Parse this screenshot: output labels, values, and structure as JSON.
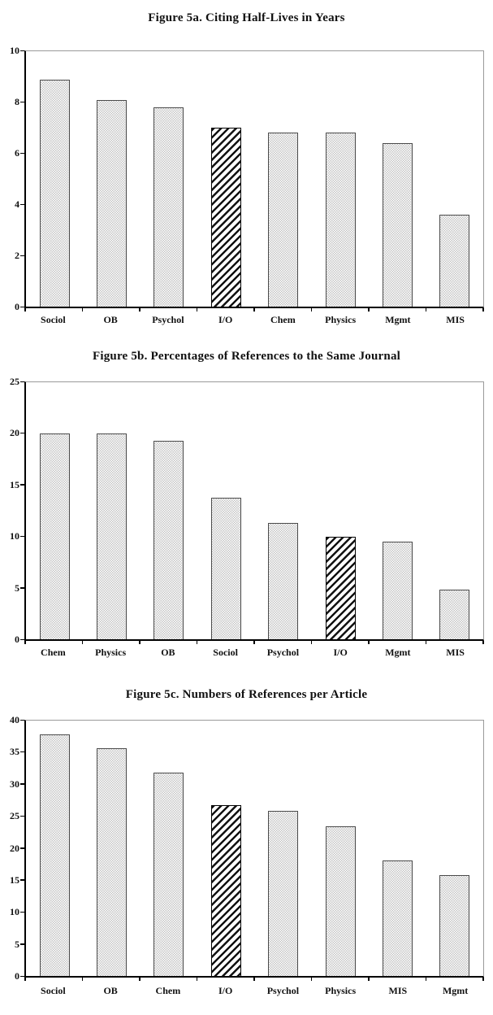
{
  "page": {
    "background": "#ffffff",
    "description_colors": {
      "bar_stipple_fill": "#c4c4c4",
      "bar_outline": "#4a4a4a",
      "highlight_hatch": "#111111",
      "axis": "#000000",
      "plot_frame": "#9a9a9a",
      "text": "#111111"
    }
  },
  "chart_data": [
    {
      "id": "figure-5a",
      "type": "bar",
      "title": "Figure 5a. Citing Half-Lives in Years",
      "categories": [
        "Sociol",
        "OB",
        "Psychol",
        "I/O",
        "Chem",
        "Physics",
        "Mgmt",
        "MIS"
      ],
      "values": [
        8.9,
        8.1,
        7.8,
        7.0,
        6.8,
        6.8,
        6.4,
        3.6
      ],
      "highlight_category": "I/O",
      "highlight_pattern": "black-diagonal-hatch",
      "default_pattern": "gray-stipple",
      "xlabel": "",
      "ylabel": "",
      "ylim": [
        0,
        10
      ],
      "yticks": [
        0,
        2,
        4,
        6,
        8,
        10
      ],
      "grid": false,
      "legend": "none"
    },
    {
      "id": "figure-5b",
      "type": "bar",
      "title": "Figure 5b. Percentages of References to the Same Journal",
      "categories": [
        "Chem",
        "Physics",
        "OB",
        "Sociol",
        "Psychol",
        "I/O",
        "Mgmt",
        "MIS"
      ],
      "values": [
        20.0,
        20.0,
        19.3,
        13.8,
        11.3,
        10.0,
        9.5,
        4.8
      ],
      "highlight_category": "I/O",
      "highlight_pattern": "black-diagonal-hatch",
      "default_pattern": "gray-stipple",
      "xlabel": "",
      "ylabel": "",
      "ylim": [
        0,
        25
      ],
      "yticks": [
        0,
        5,
        10,
        15,
        20,
        25
      ],
      "grid": false,
      "legend": "none"
    },
    {
      "id": "figure-5c",
      "type": "bar",
      "title": "Figure 5c. Numbers of References per Article",
      "categories": [
        "Sociol",
        "OB",
        "Chem",
        "I/O",
        "Psychol",
        "Physics",
        "MIS",
        "Mgmt"
      ],
      "values": [
        37.8,
        35.7,
        31.8,
        26.8,
        25.9,
        23.4,
        18.1,
        15.8
      ],
      "highlight_category": "I/O",
      "highlight_pattern": "black-diagonal-hatch",
      "default_pattern": "gray-stipple",
      "xlabel": "",
      "ylabel": "",
      "ylim": [
        0,
        40
      ],
      "yticks": [
        0,
        5,
        10,
        15,
        20,
        25,
        30,
        35,
        40
      ],
      "grid": false,
      "legend": "none"
    }
  ]
}
